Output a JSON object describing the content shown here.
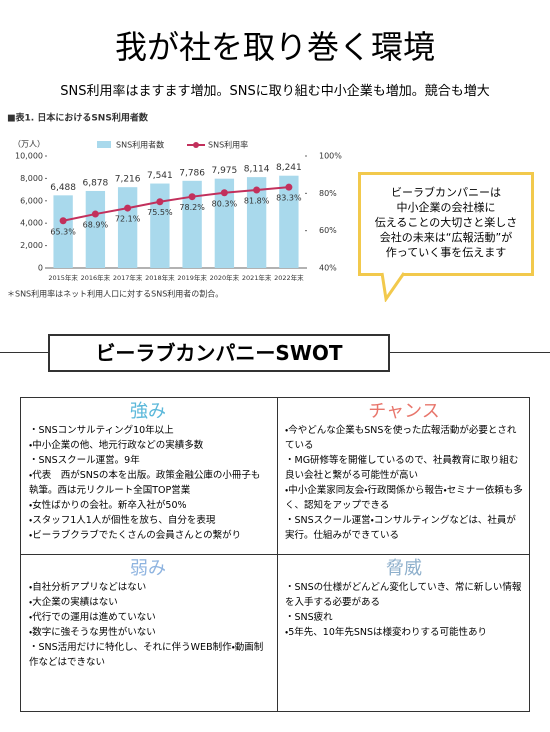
{
  "header": {
    "title": "我が社を取り巻く環境",
    "subtitle": "SNS利用率はますます増加。SNSに取り組む中小企業も増加。競合も増大"
  },
  "chart_data": {
    "type": "bar",
    "title": "■表1. 日本におけるSNS利用者数",
    "y_label": "（万人）",
    "footnote": "＊SNS利用率はネット利用人口に対するSNS利用者の割合。",
    "categories": [
      "2015年末",
      "2016年末",
      "2017年末",
      "2018年末",
      "2019年末",
      "2020年末",
      "2021年末",
      "2022年末"
    ],
    "series": [
      {
        "name": "SNS利用者数",
        "type": "bar",
        "color": "#a9d9ec",
        "values": [
          6488,
          6878,
          7216,
          7541,
          7786,
          7975,
          8114,
          8241
        ],
        "value_labels": [
          "6,488",
          "6,878",
          "7,216",
          "7,541",
          "7,786",
          "7,975",
          "8,114",
          "8,241"
        ]
      },
      {
        "name": "SNS利用率",
        "type": "line",
        "axis": "y2",
        "color": "#c2305c",
        "values": [
          65.3,
          68.9,
          72.1,
          75.5,
          78.2,
          80.3,
          81.8,
          83.3
        ],
        "value_labels": [
          "65.3%",
          "68.9%",
          "72.1%",
          "75.5%",
          "78.2%",
          "80.3%",
          "81.8%",
          "83.3%"
        ]
      }
    ],
    "ylim": [
      0,
      10000
    ],
    "yticks": [
      0,
      {
        "value": 2000,
        "label": "2,000"
      },
      {
        "value": 4000,
        "label": "4,000"
      },
      {
        "value": 6000,
        "label": "6,000"
      },
      {
        "value": 8000,
        "label": "8,000"
      },
      {
        "value": 10000,
        "label": "10,000"
      }
    ],
    "y2lim": [
      40,
      100
    ],
    "y2ticks": [
      {
        "value": 40,
        "label": "40%"
      },
      {
        "value": 60,
        "label": "60%"
      },
      {
        "value": 80,
        "label": "80%"
      },
      {
        "value": 100,
        "label": "100%"
      }
    ]
  },
  "callout": {
    "lines": [
      "ビーラブカンパニーは",
      "中小企業の会社様に",
      "伝えることの大切さと楽しさ",
      "会社の未来は“広報活動”が",
      "作っていく事を伝えます"
    ]
  },
  "swot": {
    "title": "ビーラブカンパニーSWOT",
    "strengths": {
      "heading": "強み",
      "items": [
        "・SNSコンサルティング10年以上",
        "・中小企業の他、地元行政などの実績多数",
        "・SNSスクール運営。9年",
        "・代表　西がSNSの本を出版。政策金融公庫の小冊子も執筆。西は元リクルート全国TOP営業",
        "・女性ばかりの会社。新卒入社が50%",
        "・スタッフ1人1人が個性を放ち、自分を表現",
        "・ビーラブクラブでたくさんの会員さんとの繋がり"
      ]
    },
    "opportunities": {
      "heading": "チャンス",
      "items": [
        "・今やどんな企業もSNSを使った広報活動が必要とされている",
        "・MG研修等を開催しているので、社員教育に取り組む良い会社と繋がる可能性が高い",
        "・中小企業家同友会・行政関係から報告・セミナー依頼も多く、認知をアップできる",
        "・SNSスクール運営・コンサルティングなどは、社員が実行。仕組みができている"
      ]
    },
    "weaknesses": {
      "heading": "弱み",
      "items": [
        "・自社分析アプリなどはない",
        "・大企業の実績はない",
        "・代行での運用は進めていない",
        "・数字に強そうな男性がいない",
        "・SNS活用だけに特化し、それに伴うWEB制作・動画制作などはできない"
      ]
    },
    "threats": {
      "heading": "脅威",
      "items": [
        "・SNSの仕様がどんどん変化していき、常に新しい情報を入手する必要がある",
        "・SNS疲れ",
        "・5年先、10年先SNSは様変わりする可能性あり"
      ]
    }
  }
}
